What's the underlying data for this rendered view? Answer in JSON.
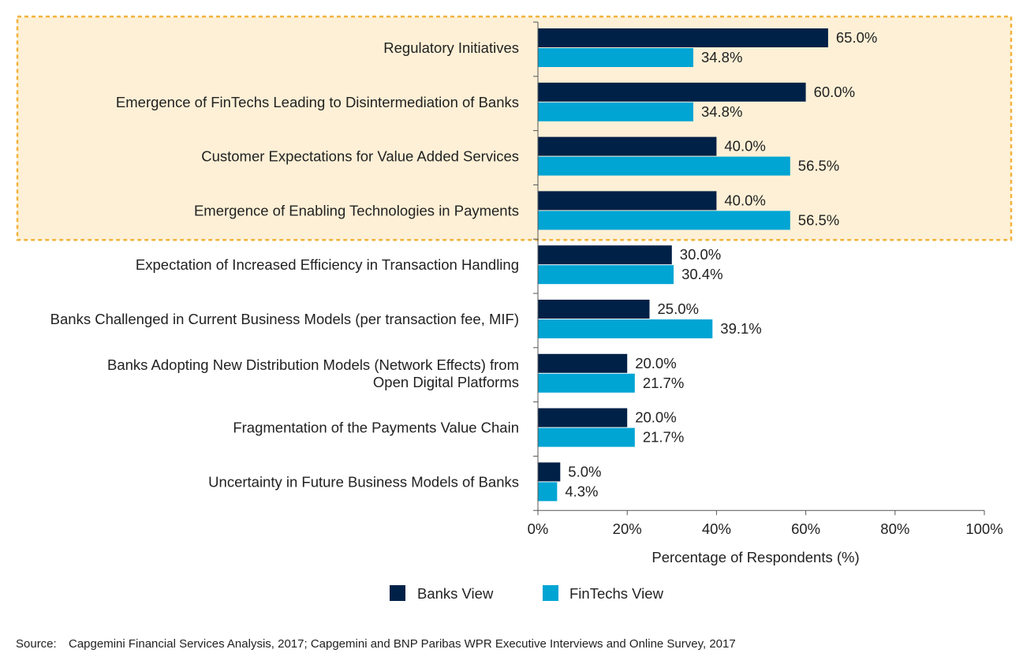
{
  "chart_data": {
    "type": "bar",
    "orientation": "horizontal",
    "categories": [
      [
        "Regulatory Initiatives"
      ],
      [
        "Emergence of FinTechs Leading to Disintermediation of Banks"
      ],
      [
        "Customer Expectations for Value Added Services"
      ],
      [
        "Emergence of Enabling Technologies in Payments"
      ],
      [
        "Expectation of Increased Efficiency in Transaction Handling"
      ],
      [
        "Banks Challenged in Current Business Models (per transaction fee, MIF)"
      ],
      [
        "Banks Adopting New Distribution Models (Network Effects) from",
        "Open Digital Platforms"
      ],
      [
        "Fragmentation of the Payments Value Chain"
      ],
      [
        "Uncertainty in Future Business Models of Banks"
      ]
    ],
    "series": [
      {
        "name": "Banks View",
        "color": "#002147",
        "values": [
          65.0,
          60.0,
          40.0,
          40.0,
          30.0,
          25.0,
          20.0,
          20.0,
          5.0
        ],
        "labels": [
          "65.0%",
          "60.0%",
          "40.0%",
          "40.0%",
          "30.0%",
          "25.0%",
          "20.0%",
          "20.0%",
          "5.0%"
        ]
      },
      {
        "name": "FinTechs View",
        "color": "#00a5d4",
        "values": [
          34.8,
          34.8,
          56.5,
          56.5,
          30.4,
          39.1,
          21.7,
          21.7,
          4.3
        ],
        "labels": [
          "34.8%",
          "34.8%",
          "56.5%",
          "56.5%",
          "30.4%",
          "39.1%",
          "21.7%",
          "21.7%",
          "4.3%"
        ]
      }
    ],
    "highlighted_categories": 4,
    "highlight_color": "#fdf0d6",
    "highlight_border": "#f2b33d",
    "xlabel": "Percentage of Respondents (%)",
    "xlim": [
      0,
      100
    ],
    "xticks": [
      "0%",
      "20%",
      "40%",
      "60%",
      "80%",
      "100%"
    ],
    "legend": "bottom-center",
    "grid": false
  },
  "source": {
    "label": "Source:",
    "text": "Capgemini Financial Services Analysis, 2017; Capgemini and BNP Paribas WPR Executive Interviews and Online Survey, 2017"
  }
}
